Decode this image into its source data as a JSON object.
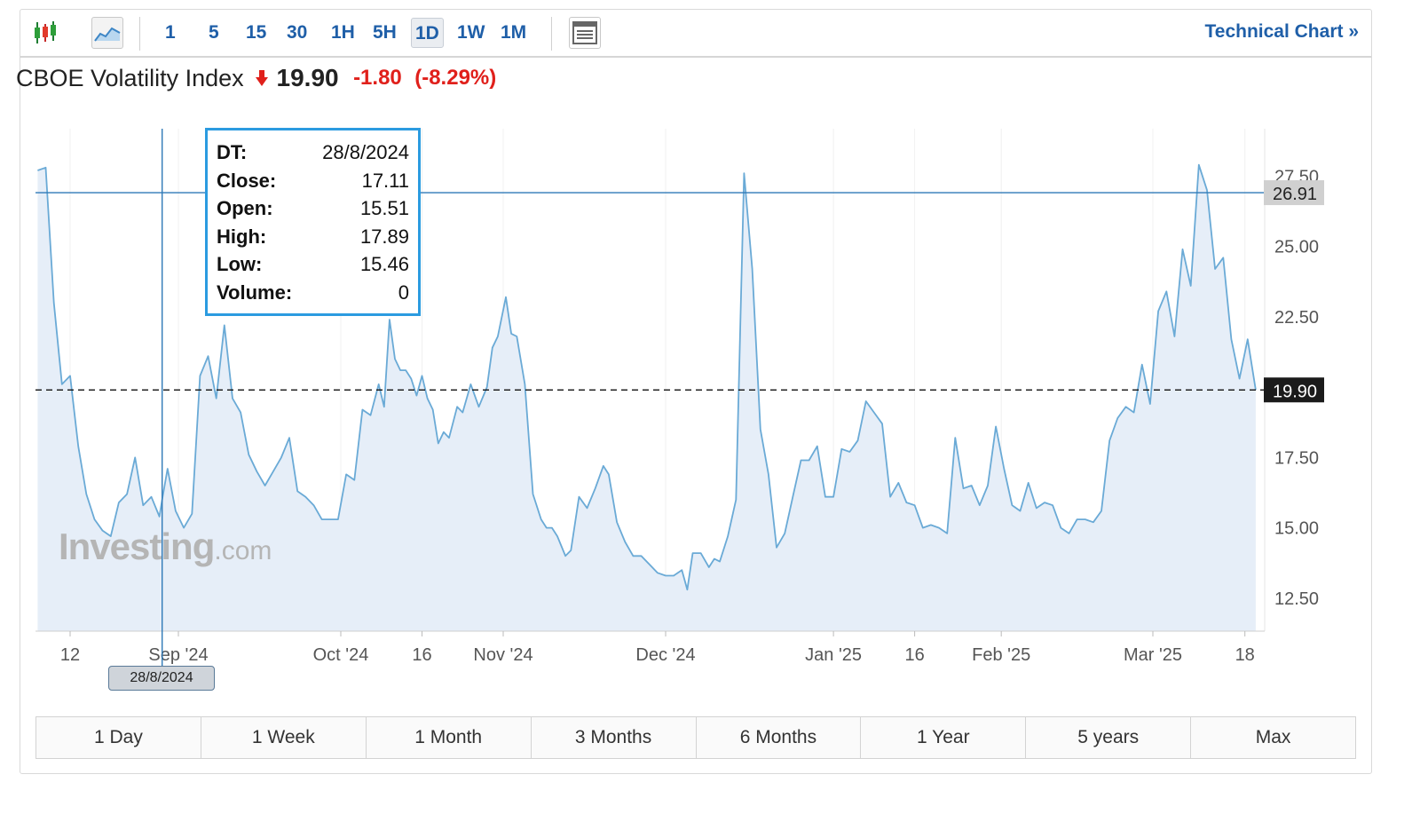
{
  "toolbar": {
    "intervals": [
      "1",
      "5",
      "15",
      "30",
      "1H",
      "5H",
      "1D",
      "1W",
      "1M"
    ],
    "active_interval": "1D",
    "technical_link": "Technical Chart »"
  },
  "instrument": {
    "name": "CBOE Volatility Index",
    "last": "19.90",
    "change": "-1.80",
    "change_pct": "(-8.29%)"
  },
  "colors": {
    "line": "#6aaad6",
    "area": "#e6eef8",
    "down": "#e0201b",
    "accent": "#2b9be0"
  },
  "tooltip": {
    "rows": [
      {
        "key": "DT:",
        "value": "28/8/2024"
      },
      {
        "key": "Close:",
        "value": "17.11"
      },
      {
        "key": "Open:",
        "value": "15.51"
      },
      {
        "key": "High:",
        "value": "17.89"
      },
      {
        "key": "Low:",
        "value": "15.46"
      },
      {
        "key": "Volume:",
        "value": "0"
      }
    ]
  },
  "crosshair_date": "28/8/2024",
  "watermark": {
    "main": "Investing",
    "suffix": ".com"
  },
  "periods": [
    "1 Day",
    "1 Week",
    "1 Month",
    "3 Months",
    "6 Months",
    "1 Year",
    "5 years",
    "Max"
  ],
  "chart_data": {
    "type": "area",
    "ylim": [
      11.0,
      28.8
    ],
    "y_ticks": [
      12.5,
      15.0,
      17.5,
      22.5,
      25.0,
      27.5
    ],
    "y_tick_labels": [
      "12.50",
      "15.00",
      "17.50",
      "22.50",
      "25.00",
      "27.50"
    ],
    "x_ticks": [
      {
        "label": "12",
        "day": 0
      },
      {
        "label": "Sep '24",
        "day": 20
      },
      {
        "label": "Oct '24",
        "day": 50
      },
      {
        "label": "16",
        "day": 65
      },
      {
        "label": "Nov '24",
        "day": 80
      },
      {
        "label": "Dec '24",
        "day": 110
      },
      {
        "label": "Jan '25",
        "day": 141
      },
      {
        "label": "16",
        "day": 156
      },
      {
        "label": "Feb '25",
        "day": 172
      },
      {
        "label": "Mar '25",
        "day": 200
      },
      {
        "label": "18",
        "day": 217
      }
    ],
    "crosshair_value": 26.91,
    "crosshair_label": "26.91",
    "crosshair_day": 17,
    "last_value": 19.9,
    "last_label": "19.90",
    "points": [
      [
        -6,
        27.7
      ],
      [
        -4.5,
        27.8
      ],
      [
        -3,
        23.0
      ],
      [
        -1.5,
        20.1
      ],
      [
        0,
        20.4
      ],
      [
        1.5,
        17.9
      ],
      [
        3,
        16.2
      ],
      [
        4.5,
        15.3
      ],
      [
        6,
        14.9
      ],
      [
        7.5,
        14.7
      ],
      [
        9,
        15.9
      ],
      [
        10.5,
        16.2
      ],
      [
        12,
        17.5
      ],
      [
        13.5,
        15.8
      ],
      [
        15,
        16.1
      ],
      [
        16.5,
        15.4
      ],
      [
        17,
        16.0
      ],
      [
        18,
        17.1
      ],
      [
        19.5,
        15.6
      ],
      [
        21,
        15.0
      ],
      [
        22.5,
        15.5
      ],
      [
        24,
        20.4
      ],
      [
        25.5,
        21.1
      ],
      [
        27,
        19.6
      ],
      [
        28.5,
        22.2
      ],
      [
        30,
        19.6
      ],
      [
        31.5,
        19.1
      ],
      [
        33,
        17.6
      ],
      [
        34.5,
        17.0
      ],
      [
        36,
        16.5
      ],
      [
        37.5,
        17.0
      ],
      [
        39,
        17.5
      ],
      [
        40.5,
        18.2
      ],
      [
        42,
        16.3
      ],
      [
        43.5,
        16.1
      ],
      [
        45,
        15.8
      ],
      [
        46.5,
        15.3
      ],
      [
        48,
        15.3
      ],
      [
        49.5,
        15.3
      ],
      [
        51,
        16.9
      ],
      [
        52.5,
        16.7
      ],
      [
        54,
        19.2
      ],
      [
        55.5,
        19.0
      ],
      [
        57,
        20.1
      ],
      [
        58,
        19.3
      ],
      [
        59,
        22.4
      ],
      [
        60,
        21.0
      ],
      [
        61,
        20.6
      ],
      [
        62,
        20.6
      ],
      [
        63,
        20.3
      ],
      [
        64,
        19.7
      ],
      [
        65,
        20.4
      ],
      [
        66,
        19.6
      ],
      [
        67,
        19.2
      ],
      [
        68,
        18.0
      ],
      [
        69,
        18.4
      ],
      [
        70,
        18.2
      ],
      [
        71.5,
        19.3
      ],
      [
        72.5,
        19.1
      ],
      [
        74,
        20.1
      ],
      [
        75.5,
        19.3
      ],
      [
        77,
        20.0
      ],
      [
        78,
        21.4
      ],
      [
        79,
        21.8
      ],
      [
        80.5,
        23.2
      ],
      [
        81.5,
        21.9
      ],
      [
        82.5,
        21.8
      ],
      [
        84,
        20.1
      ],
      [
        85.5,
        16.2
      ],
      [
        87,
        15.3
      ],
      [
        88,
        15.0
      ],
      [
        89,
        15.0
      ],
      [
        90,
        14.7
      ],
      [
        91.5,
        14.0
      ],
      [
        92.5,
        14.2
      ],
      [
        94,
        16.1
      ],
      [
        95.5,
        15.7
      ],
      [
        97,
        16.4
      ],
      [
        98.5,
        17.2
      ],
      [
        99.5,
        16.9
      ],
      [
        101,
        15.2
      ],
      [
        102.5,
        14.5
      ],
      [
        104,
        14.0
      ],
      [
        105.5,
        14.0
      ],
      [
        107,
        13.7
      ],
      [
        108.5,
        13.4
      ],
      [
        110,
        13.3
      ],
      [
        111.5,
        13.3
      ],
      [
        113,
        13.5
      ],
      [
        114,
        12.8
      ],
      [
        115,
        14.1
      ],
      [
        116.5,
        14.1
      ],
      [
        118,
        13.6
      ],
      [
        119,
        13.9
      ],
      [
        120,
        13.8
      ],
      [
        121.5,
        14.7
      ],
      [
        123,
        16.0
      ],
      [
        124.5,
        27.6
      ],
      [
        126,
        24.2
      ],
      [
        127.5,
        18.5
      ],
      [
        129,
        16.9
      ],
      [
        130.5,
        14.3
      ],
      [
        132,
        14.8
      ],
      [
        133.5,
        16.1
      ],
      [
        135,
        17.4
      ],
      [
        136.5,
        17.4
      ],
      [
        138,
        17.9
      ],
      [
        139.5,
        16.1
      ],
      [
        141,
        16.1
      ],
      [
        142.5,
        17.8
      ],
      [
        144,
        17.7
      ],
      [
        145.5,
        18.1
      ],
      [
        147,
        19.5
      ],
      [
        148.5,
        19.1
      ],
      [
        150,
        18.7
      ],
      [
        151.5,
        16.1
      ],
      [
        153,
        16.6
      ],
      [
        154.5,
        15.9
      ],
      [
        156,
        15.8
      ],
      [
        157.5,
        15.0
      ],
      [
        159,
        15.1
      ],
      [
        160.5,
        15.0
      ],
      [
        162,
        14.8
      ],
      [
        163.5,
        18.2
      ],
      [
        165,
        16.4
      ],
      [
        166.5,
        16.5
      ],
      [
        168,
        15.8
      ],
      [
        169.5,
        16.5
      ],
      [
        171,
        18.6
      ],
      [
        172.5,
        17.1
      ],
      [
        174,
        15.8
      ],
      [
        175.5,
        15.6
      ],
      [
        177,
        16.6
      ],
      [
        178.5,
        15.7
      ],
      [
        180,
        15.9
      ],
      [
        181.5,
        15.8
      ],
      [
        183,
        15.0
      ],
      [
        184.5,
        14.8
      ],
      [
        186,
        15.3
      ],
      [
        187.5,
        15.3
      ],
      [
        189,
        15.2
      ],
      [
        190.5,
        15.6
      ],
      [
        192,
        18.1
      ],
      [
        193.5,
        18.9
      ],
      [
        195,
        19.3
      ],
      [
        196.5,
        19.1
      ],
      [
        198,
        20.8
      ],
      [
        199.5,
        19.4
      ],
      [
        201,
        22.7
      ],
      [
        202.5,
        23.4
      ],
      [
        204,
        21.8
      ],
      [
        205.5,
        24.9
      ],
      [
        207,
        23.6
      ],
      [
        208.5,
        27.9
      ],
      [
        210,
        27.0
      ],
      [
        211.5,
        24.2
      ],
      [
        213,
        24.6
      ],
      [
        214.5,
        21.7
      ],
      [
        216,
        20.3
      ],
      [
        217.5,
        21.7
      ],
      [
        219,
        19.9
      ]
    ]
  }
}
